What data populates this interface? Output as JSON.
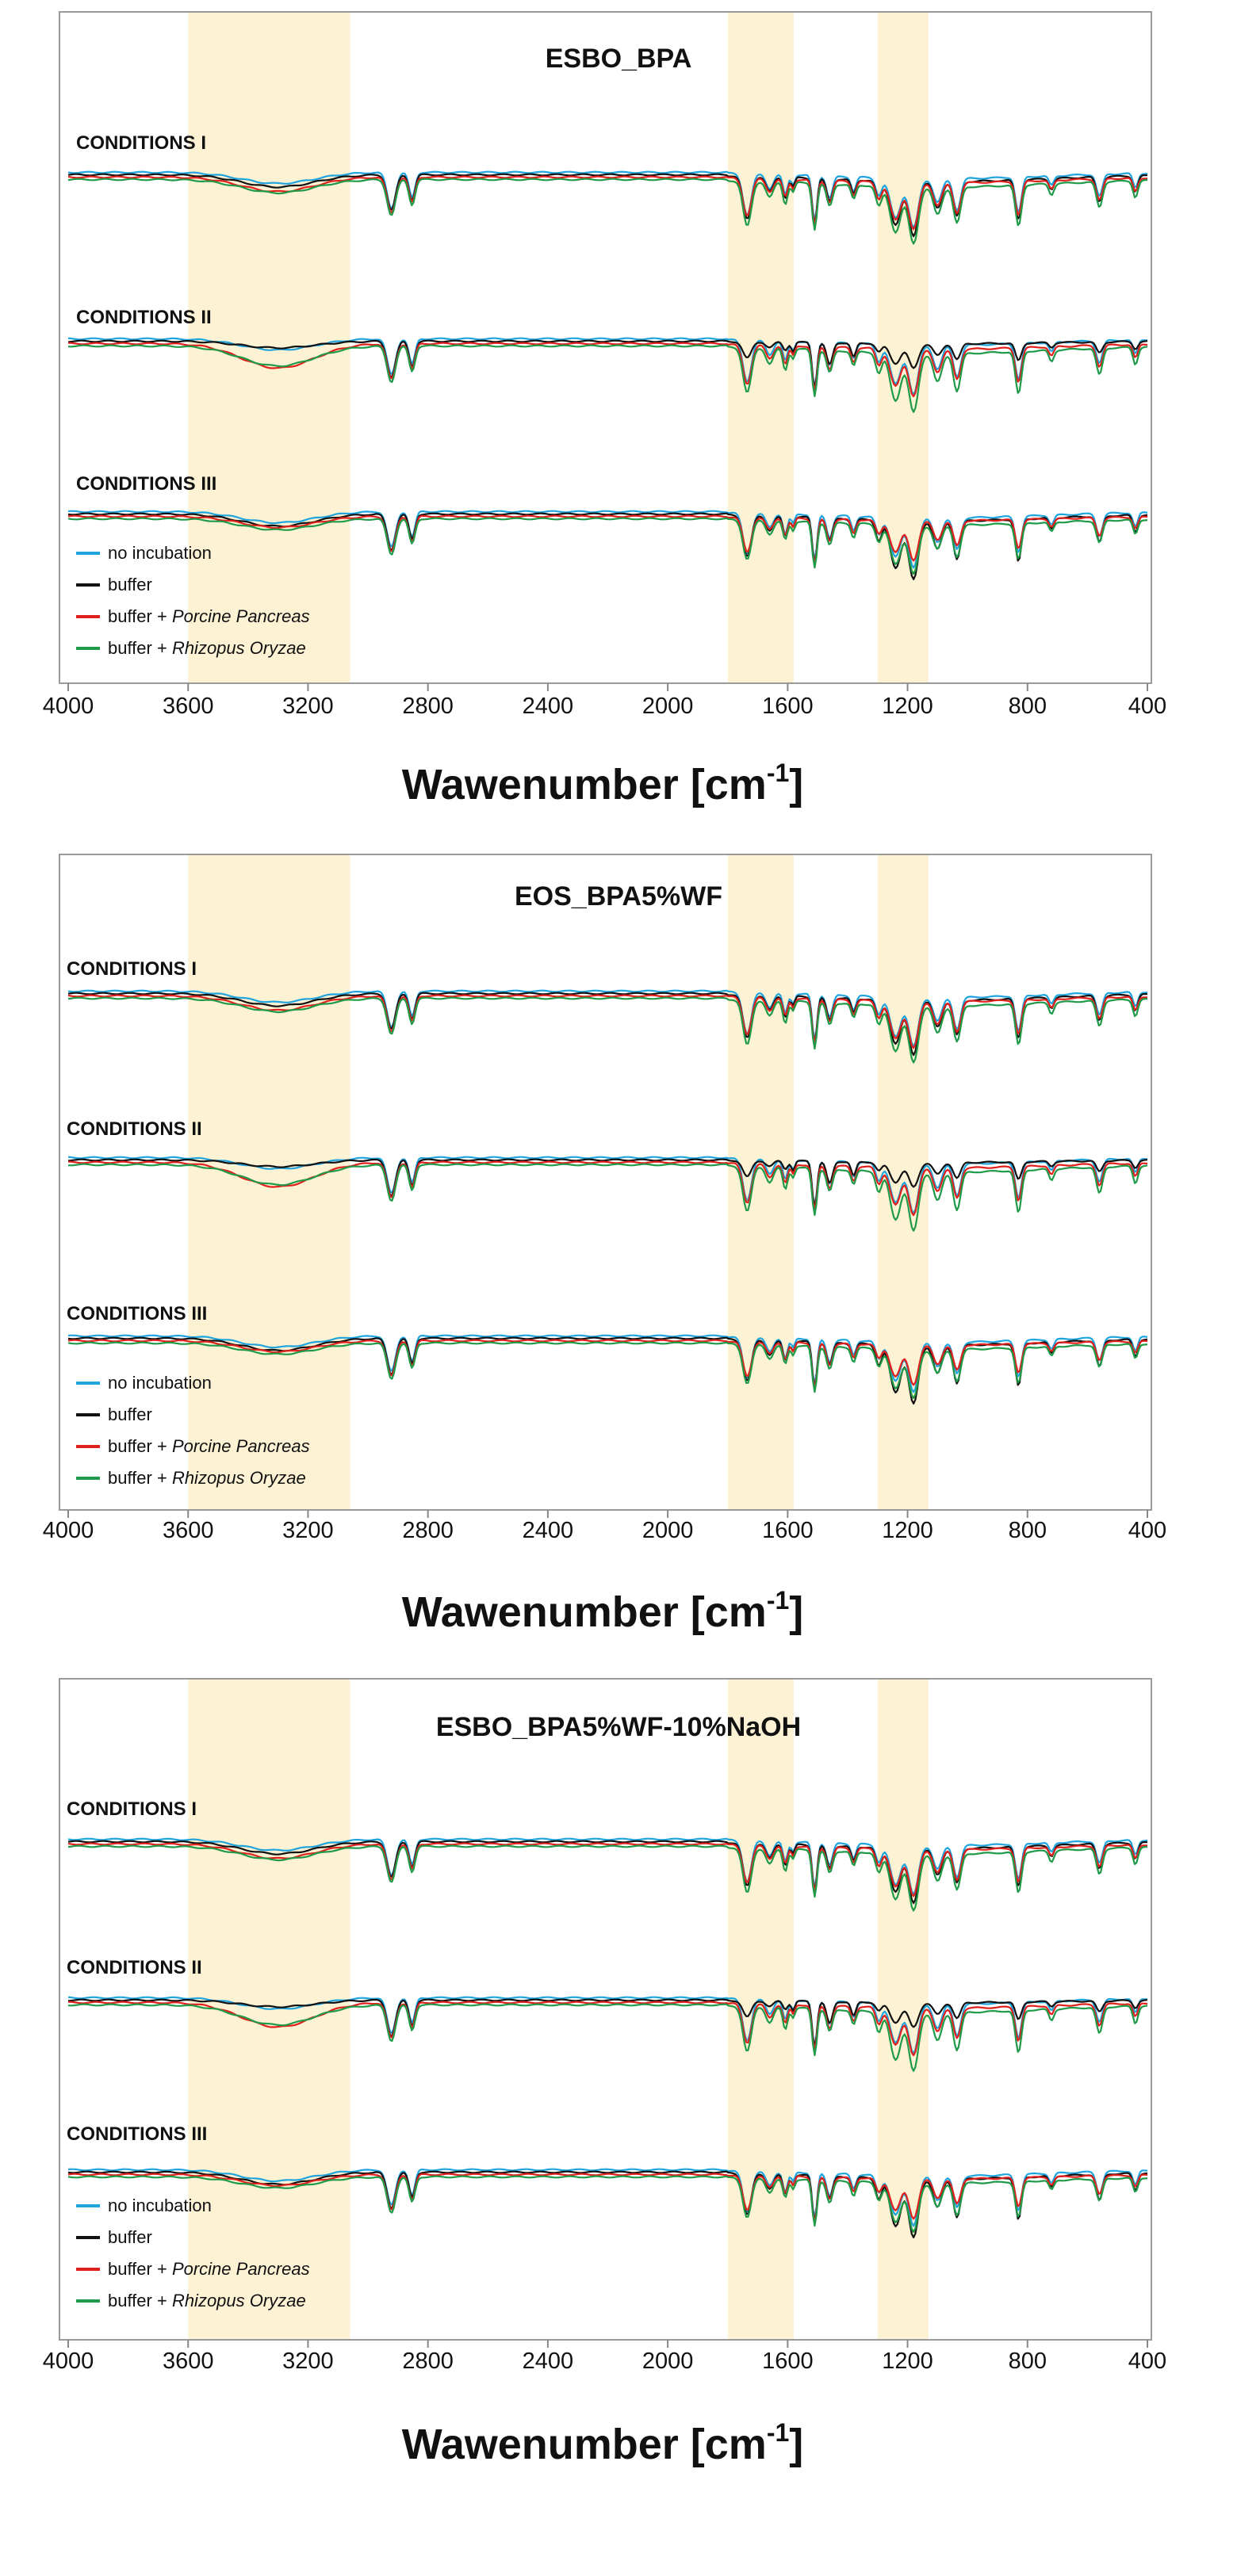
{
  "figure": {
    "highlight_color": "#fdf2d4",
    "series_colors": {
      "no incubation": "#1fa4dd",
      "buffer": "#111111",
      "buffer + Porcine Pancreas": "#e0201c",
      "buffer + Rhizopus Oryzae": "#1f9a48"
    },
    "legend": [
      {
        "prefix": "no incubation",
        "italic": ""
      },
      {
        "prefix": "buffer",
        "italic": ""
      },
      {
        "prefix": "buffer + ",
        "italic": "Porcine Pancreas"
      },
      {
        "prefix": "buffer + ",
        "italic": "Rhizopus Oryzae"
      }
    ],
    "condition_labels": [
      "CONDITIONS I",
      "CONDITIONS II",
      "CONDITIONS III"
    ]
  },
  "chart_data": [
    {
      "type": "line",
      "title": "ESBO_BPA",
      "xlabel": "Wawenumber [cm",
      "xlabel_sup": "-1",
      "xlabel_end": "]",
      "xlim": [
        4000,
        400
      ],
      "reversed_x": true,
      "xticks": [
        4000,
        3600,
        3200,
        2800,
        2400,
        2000,
        1600,
        1200,
        800,
        400
      ],
      "highlight_bands": [
        [
          3600,
          3060
        ],
        [
          1800,
          1580
        ],
        [
          1300,
          1130
        ]
      ],
      "y_axis": "none (offset spectra, arbitrary units)",
      "legend_position": "bottom-left",
      "series": [
        "no incubation",
        "buffer",
        "buffer + Porcine Pancreas",
        "buffer + Rhizopus Oryzae"
      ]
    },
    {
      "type": "line",
      "title": "EOS_BPA5%WF",
      "xlabel": "Wawenumber [cm",
      "xlabel_sup": "-1",
      "xlabel_end": "]",
      "xlim": [
        4000,
        400
      ],
      "reversed_x": true,
      "xticks": [
        4000,
        3600,
        3200,
        2800,
        2400,
        2000,
        1600,
        1200,
        800,
        400
      ],
      "highlight_bands": [
        [
          3600,
          3060
        ],
        [
          1800,
          1580
        ],
        [
          1300,
          1130
        ]
      ],
      "y_axis": "none (offset spectra, arbitrary units)",
      "legend_position": "bottom-left",
      "series": [
        "no incubation",
        "buffer",
        "buffer + Porcine Pancreas",
        "buffer + Rhizopus Oryzae"
      ]
    },
    {
      "type": "line",
      "title": "ESBO_BPA5%WF-10%NaOH",
      "xlabel": "Wawenumber [cm",
      "xlabel_sup": "-1",
      "xlabel_end": "]",
      "xlim": [
        4000,
        400
      ],
      "reversed_x": true,
      "xticks": [
        4000,
        3600,
        3200,
        2800,
        2400,
        2000,
        1600,
        1200,
        800,
        400
      ],
      "highlight_bands": [
        [
          3600,
          3060
        ],
        [
          1800,
          1580
        ],
        [
          1300,
          1130
        ]
      ],
      "y_axis": "none (offset spectra, arbitrary units)",
      "legend_position": "bottom-left",
      "series": [
        "no incubation",
        "buffer",
        "buffer + Porcine Pancreas",
        "buffer + Rhizopus Oryzae"
      ]
    }
  ]
}
